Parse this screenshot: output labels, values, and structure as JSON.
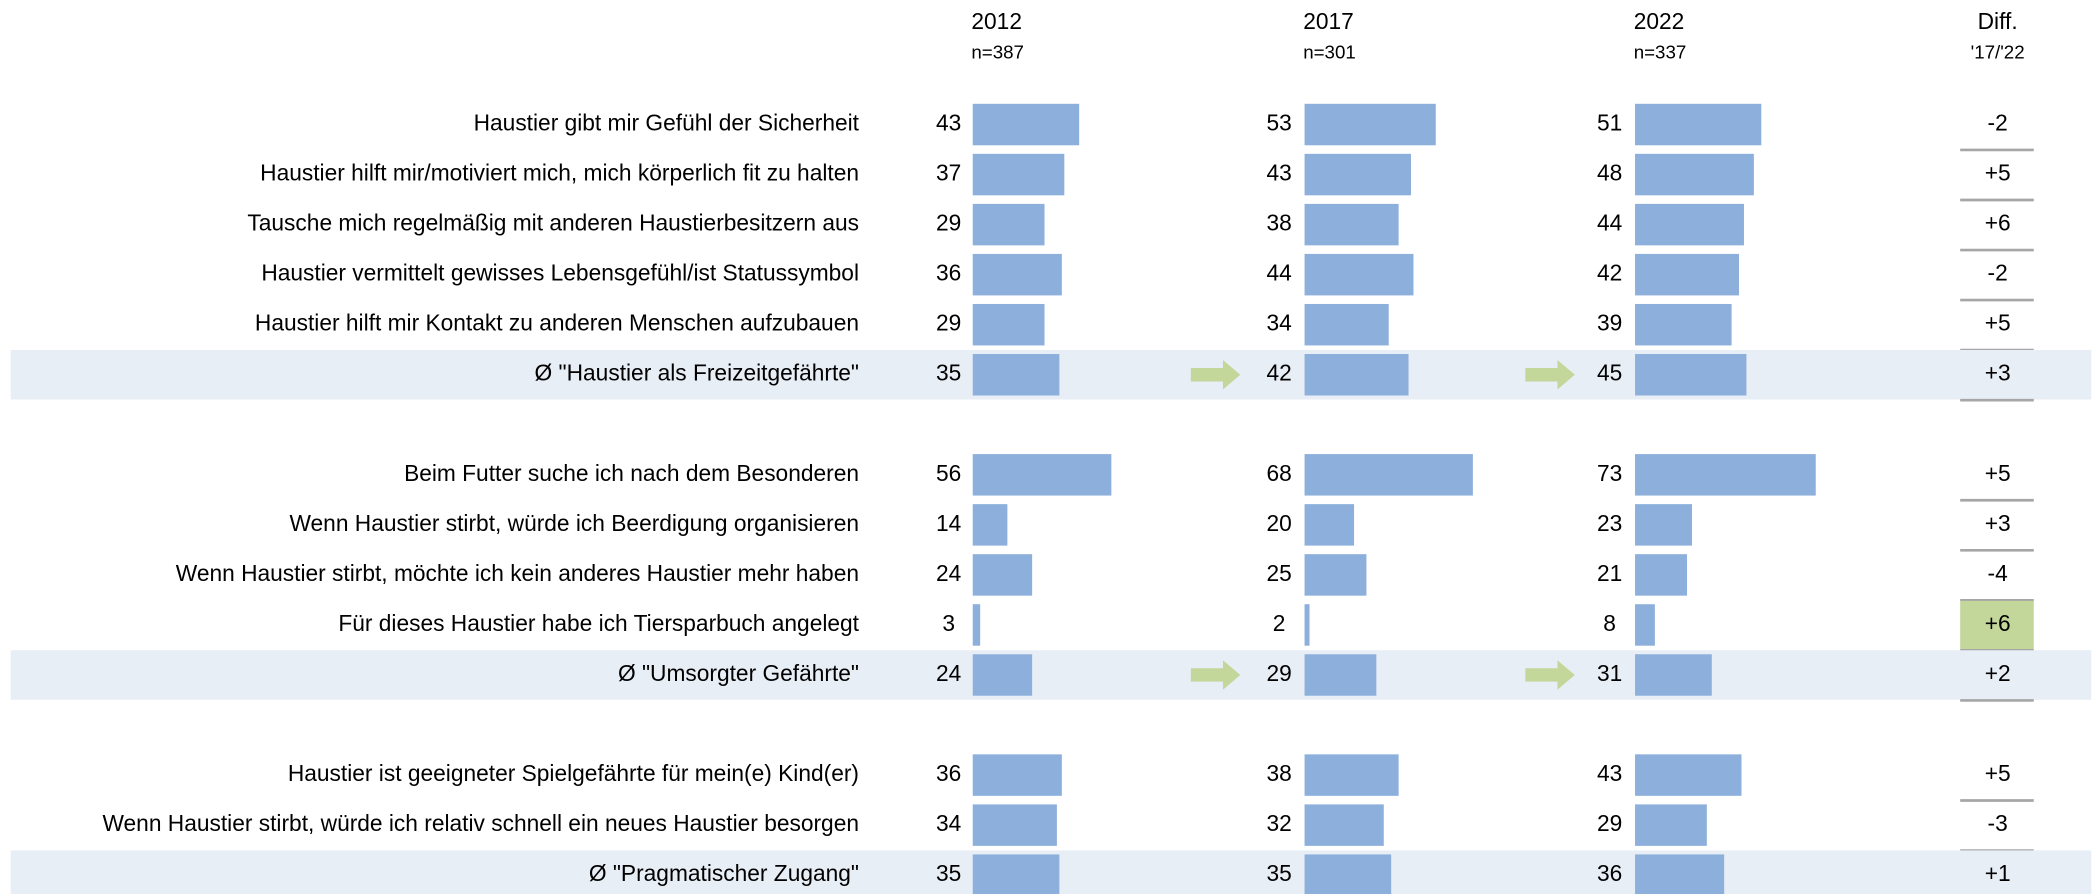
{
  "chart_data": {
    "type": "bar_table",
    "columns": [
      {
        "year": "2012",
        "n": "n=387"
      },
      {
        "year": "2017",
        "n": "n=301"
      },
      {
        "year": "2022",
        "n": "n=337"
      }
    ],
    "diff_header": [
      "Diff.",
      "'17/'22"
    ],
    "xlim": [
      0,
      100
    ],
    "color": "#8cafdb",
    "highlight_color": "#c4d79b",
    "arrow_color": "#c4d79b",
    "band_color": "#e8eef6",
    "groups": [
      {
        "rows": [
          {
            "label": "Haustier gibt mir Gefühl der Sicherheit",
            "values": [
              43,
              53,
              51
            ],
            "diff": "-2"
          },
          {
            "label": "Haustier hilft mir/motiviert mich, mich körperlich fit zu halten",
            "values": [
              37,
              43,
              48
            ],
            "diff": "+5"
          },
          {
            "label": "Tausche mich regelmäßig mit anderen Haustierbesitzern aus",
            "values": [
              29,
              38,
              44
            ],
            "diff": "+6"
          },
          {
            "label": "Haustier vermittelt gewisses Lebensgefühl/ist Statussymbol",
            "values": [
              36,
              44,
              42
            ],
            "diff": "-2"
          },
          {
            "label": "Haustier hilft mir Kontakt zu anderen Menschen aufzubauen",
            "values": [
              29,
              34,
              39
            ],
            "diff": "+5"
          }
        ],
        "average": {
          "label": "Ø \"Haustier als Freizeitgefährte\"",
          "values": [
            35,
            42,
            45
          ],
          "diff": "+3",
          "arrows": true
        }
      },
      {
        "rows": [
          {
            "label": "Beim Futter suche ich nach dem Besonderen",
            "values": [
              56,
              68,
              73
            ],
            "diff": "+5"
          },
          {
            "label": "Wenn Haustier stirbt, würde ich Beerdigung organisieren",
            "values": [
              14,
              20,
              23
            ],
            "diff": "+3"
          },
          {
            "label": "Wenn Haustier stirbt, möchte ich kein anderes Haustier mehr haben",
            "values": [
              24,
              25,
              21
            ],
            "diff": "-4"
          },
          {
            "label": "Für dieses Haustier habe ich Tiersparbuch angelegt",
            "values": [
              3,
              2,
              8
            ],
            "diff": "+6",
            "highlight": true
          }
        ],
        "average": {
          "label": "Ø \"Umsorgter Gefährte\"",
          "values": [
            24,
            29,
            31
          ],
          "diff": "+2",
          "arrows": true
        }
      },
      {
        "rows": [
          {
            "label": "Haustier ist geeigneter Spielgefährte für mein(e) Kind(er)",
            "values": [
              36,
              38,
              43
            ],
            "diff": "+5"
          },
          {
            "label": "Wenn Haustier stirbt, würde ich relativ schnell ein neues Haustier besorgen",
            "values": [
              34,
              32,
              29
            ],
            "diff": "-3"
          }
        ],
        "average": {
          "label": "Ø \"Pragmatischer Zugang\"",
          "values": [
            35,
            35,
            36
          ],
          "diff": "+1",
          "arrows": false
        }
      }
    ]
  }
}
